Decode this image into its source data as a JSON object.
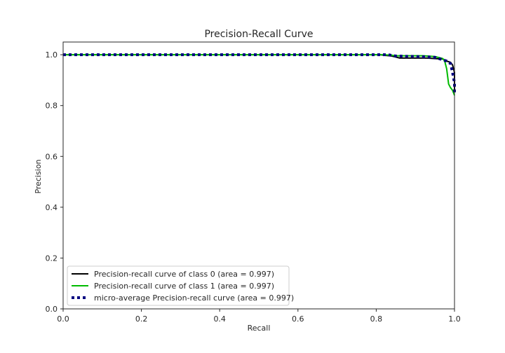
{
  "chart_data": {
    "type": "line",
    "title": "Precision-Recall Curve",
    "xlabel": "Recall",
    "ylabel": "Precision",
    "xlim": [
      0.0,
      1.0
    ],
    "ylim": [
      0.0,
      1.05
    ],
    "xticks": [
      "0.0",
      "0.2",
      "0.4",
      "0.6",
      "0.8",
      "1.0"
    ],
    "yticks": [
      "0.0",
      "0.2",
      "0.4",
      "0.6",
      "0.8",
      "1.0"
    ],
    "grid": false,
    "legend_position": "lower-left",
    "series": [
      {
        "name": "Precision-recall curve of class 0 (area = 0.997)",
        "color": "#000000",
        "style": "solid",
        "points": [
          [
            0.0,
            1.0
          ],
          [
            0.81,
            1.0
          ],
          [
            0.82,
            0.998
          ],
          [
            0.84,
            0.995
          ],
          [
            0.86,
            0.987
          ],
          [
            0.93,
            0.987
          ],
          [
            0.95,
            0.985
          ],
          [
            0.97,
            0.983
          ],
          [
            0.98,
            0.975
          ],
          [
            0.99,
            0.97
          ],
          [
            0.995,
            0.96
          ],
          [
            1.0,
            0.93
          ],
          [
            1.0,
            0.86
          ]
        ]
      },
      {
        "name": "Precision-recall curve of class 1 (area = 0.997)",
        "color": "#00bb00",
        "style": "solid",
        "points": [
          [
            0.0,
            1.0
          ],
          [
            0.82,
            1.0
          ],
          [
            0.84,
            0.998
          ],
          [
            0.85,
            0.996
          ],
          [
            0.92,
            0.996
          ],
          [
            0.95,
            0.993
          ],
          [
            0.97,
            0.985
          ],
          [
            0.975,
            0.975
          ],
          [
            0.98,
            0.945
          ],
          [
            0.985,
            0.885
          ],
          [
            0.99,
            0.87
          ],
          [
            0.995,
            0.86
          ],
          [
            1.0,
            0.84
          ]
        ]
      },
      {
        "name": "micro-average Precision-recall curve (area = 0.997)",
        "color": "#000080",
        "style": "dotted",
        "points": [
          [
            0.0,
            1.0
          ],
          [
            0.83,
            1.0
          ],
          [
            0.85,
            0.995
          ],
          [
            0.92,
            0.992
          ],
          [
            0.95,
            0.99
          ],
          [
            0.97,
            0.98
          ],
          [
            0.98,
            0.975
          ],
          [
            0.99,
            0.965
          ],
          [
            0.995,
            0.93
          ],
          [
            1.0,
            0.89
          ],
          [
            1.0,
            0.85
          ]
        ]
      }
    ]
  }
}
